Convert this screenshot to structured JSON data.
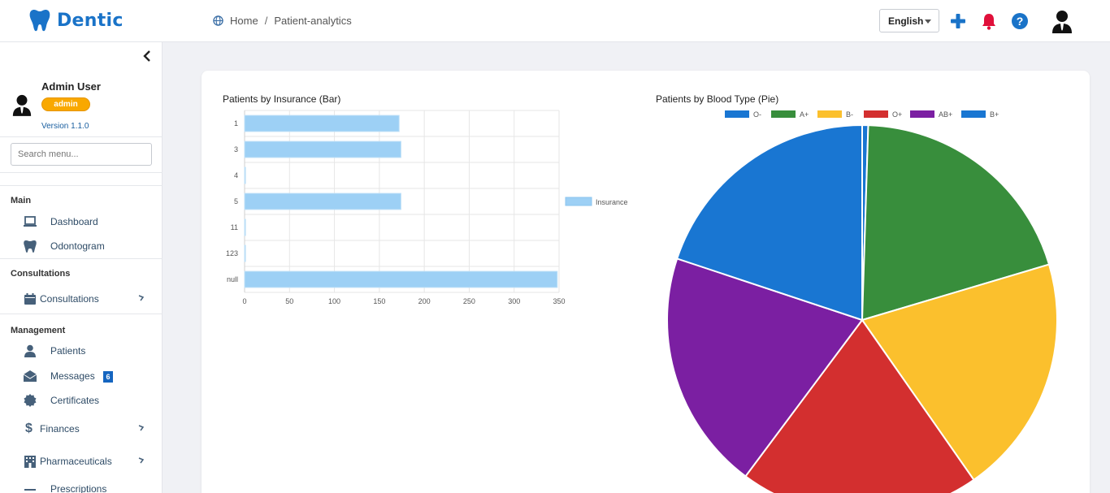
{
  "app": {
    "name": "Dentic"
  },
  "breadcrumb": {
    "home": "Home",
    "separator": "/",
    "current": "Patient-analytics"
  },
  "topbar": {
    "language": "English"
  },
  "user": {
    "name": "Admin User",
    "role": "admin",
    "version": "Version 1.1.0"
  },
  "sidebar": {
    "search_placeholder": "Search menu...",
    "sections": {
      "main": "Main",
      "consultations": "Consultations",
      "management": "Management"
    },
    "items": {
      "dashboard": "Dashboard",
      "odontogram": "Odontogram",
      "consultations": "Consultations",
      "patients": "Patients",
      "messages": "Messages",
      "messages_badge": "6",
      "certificates": "Certificates",
      "finances": "Finances",
      "pharmaceuticals": "Pharmaceuticals",
      "prescriptions": "Prescriptions"
    }
  },
  "icons": {
    "logo": "tooth-icon",
    "breadcrumb": "globe-icon",
    "add": "plus-icon",
    "notifications": "bell-icon",
    "help": "question-icon",
    "avatar": "user-avatar-icon"
  },
  "colors": {
    "brand": "#1a73c8",
    "role_badge": "#f9a800",
    "bell": "#e0103a"
  },
  "chart_data": [
    {
      "type": "bar",
      "orientation": "horizontal",
      "title": "Patients by Insurance (Bar)",
      "categories": [
        "1",
        "3",
        "4",
        "5",
        "11",
        "123",
        "null"
      ],
      "series": [
        {
          "name": "Insurance",
          "values": [
            172,
            174,
            1,
            174,
            1,
            1,
            348
          ],
          "color": "#9dd0f5"
        }
      ],
      "xlim": [
        0,
        350
      ],
      "xticks": [
        0,
        50,
        100,
        150,
        200,
        250,
        300,
        350
      ],
      "grid": true,
      "legend": "right"
    },
    {
      "type": "pie",
      "title": "Patients by Blood Type (Pie)",
      "legend": "top",
      "slices": [
        {
          "label": "O-",
          "value": 0.5,
          "color": "#1976d2"
        },
        {
          "label": "A+",
          "value": 20,
          "color": "#388e3c"
        },
        {
          "label": "B-",
          "value": 20,
          "color": "#fbc02d"
        },
        {
          "label": "O+",
          "value": 20,
          "color": "#d32f2f"
        },
        {
          "label": "AB+",
          "value": 20,
          "color": "#7b1fa2"
        },
        {
          "label": "B+",
          "value": 20,
          "color": "#1976d2"
        }
      ]
    }
  ]
}
